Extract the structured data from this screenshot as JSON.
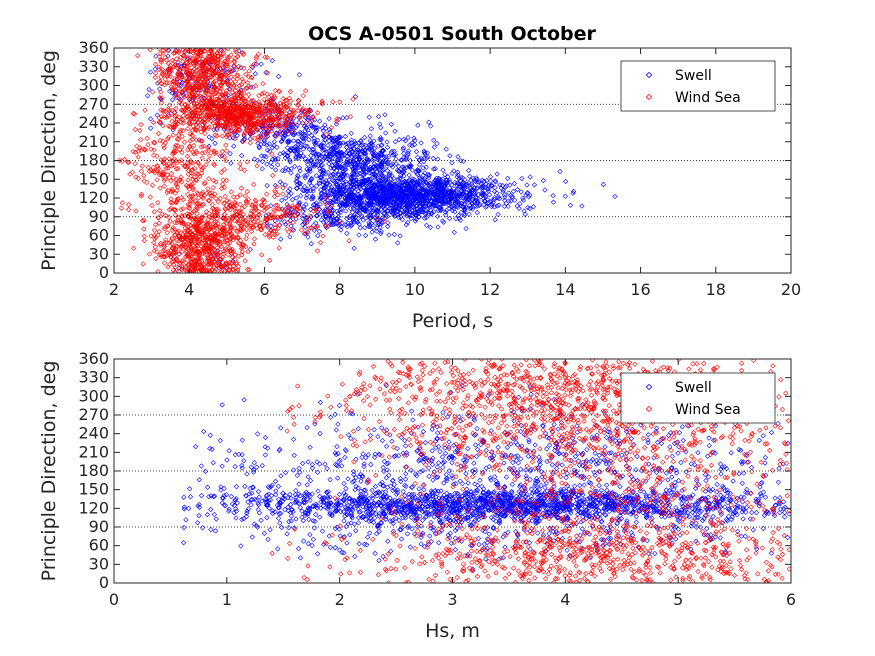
{
  "title": "OCS A-0501 South October",
  "colors": {
    "swell": "#0000ff",
    "wind_sea": "#ff0000",
    "axis": "#262626",
    "ref_lines": "#000000"
  },
  "chart_data": [
    {
      "type": "scatter",
      "xlabel": "Period, s",
      "ylabel": "Principle Direction, deg",
      "xlim": [
        2,
        20
      ],
      "ylim": [
        0,
        360
      ],
      "xticks": [
        2,
        4,
        6,
        8,
        10,
        12,
        14,
        16,
        18,
        20
      ],
      "yticks": [
        0,
        30,
        60,
        90,
        120,
        150,
        180,
        210,
        240,
        270,
        300,
        330,
        360
      ],
      "reference_lines_y": [
        90,
        180,
        270
      ],
      "grid": false,
      "legend": {
        "placement": "top-right",
        "entries": [
          "Swell",
          "Wind Sea"
        ]
      },
      "marker": "diamond",
      "series": [
        {
          "name": "Swell",
          "color": "#0000ff",
          "point_count": 2600,
          "clusters": [
            {
              "x_mean": 9.8,
              "x_sd": 1.4,
              "y_mean": 125,
              "y_sd": 16,
              "weight": 0.55,
              "x_range": [
                6.5,
                15.5
              ]
            },
            {
              "x_mean": 8.4,
              "x_sd": 1.1,
              "y_mean": 180,
              "y_sd": 22,
              "weight": 0.22,
              "x_range": [
                5.5,
                13
              ]
            },
            {
              "x_mean": 6.6,
              "x_sd": 1.0,
              "y_mean": 225,
              "y_sd": 22,
              "weight": 0.1,
              "x_range": [
                4.5,
                10
              ]
            },
            {
              "x_mean": 8.0,
              "x_sd": 1.2,
              "y_mean": 85,
              "y_sd": 15,
              "weight": 0.08,
              "x_range": [
                6,
                12
              ]
            },
            {
              "x_mean": 4.2,
              "x_sd": 0.9,
              "y_mean": 310,
              "y_sd": 40,
              "weight": 0.05,
              "x_range": [
                2.8,
                7
              ]
            }
          ],
          "x_peak": [
            9.6,
            125
          ]
        },
        {
          "name": "Wind Sea",
          "color": "#ff0000",
          "point_count": 2400,
          "clusters": [
            {
              "x_mean": 4.3,
              "x_sd": 0.6,
              "y_mean": 320,
              "y_sd": 28,
              "weight": 0.22,
              "x_range": [
                3,
                6.5
              ]
            },
            {
              "x_mean": 5.3,
              "x_sd": 0.9,
              "y_mean": 255,
              "y_sd": 16,
              "weight": 0.3,
              "x_range": [
                3.2,
                8.5
              ]
            },
            {
              "x_mean": 4.3,
              "x_sd": 0.6,
              "y_mean": 45,
              "y_sd": 28,
              "weight": 0.22,
              "x_range": [
                2.5,
                6.5
              ]
            },
            {
              "x_mean": 5.5,
              "x_sd": 1.0,
              "y_mean": 90,
              "y_sd": 20,
              "weight": 0.12,
              "x_range": [
                3.5,
                9.5
              ]
            },
            {
              "x_mean": 3.8,
              "x_sd": 0.8,
              "y_mean": 170,
              "y_sd": 45,
              "weight": 0.14,
              "x_range": [
                2.1,
                7
              ]
            }
          ]
        }
      ]
    },
    {
      "type": "scatter",
      "xlabel": "Hs, m",
      "ylabel": "Principle Direction, deg",
      "xlim": [
        0,
        6
      ],
      "ylim": [
        0,
        360
      ],
      "xticks": [
        0,
        1,
        2,
        3,
        4,
        5,
        6
      ],
      "yticks": [
        0,
        30,
        60,
        90,
        120,
        150,
        180,
        210,
        240,
        270,
        300,
        330,
        360
      ],
      "reference_lines_y": [
        90,
        180,
        270
      ],
      "grid": false,
      "legend": {
        "placement": "top-right",
        "entries": [
          "Swell",
          "Wind Sea"
        ]
      },
      "marker": "diamond",
      "series": [
        {
          "name": "Swell",
          "color": "#0000ff",
          "point_count": 2600,
          "clusters": [
            {
              "x_mean": 3.5,
              "x_sd": 1.3,
              "y_mean": 125,
              "y_sd": 13,
              "weight": 0.6,
              "x_range": [
                0.6,
                6
              ]
            },
            {
              "x_mean": 3.6,
              "x_sd": 1.3,
              "y_mean": 190,
              "y_sd": 45,
              "weight": 0.3,
              "x_range": [
                0.7,
                6
              ]
            },
            {
              "x_mean": 3.3,
              "x_sd": 1.4,
              "y_mean": 80,
              "y_sd": 20,
              "weight": 0.1,
              "x_range": [
                0.6,
                6
              ]
            }
          ]
        },
        {
          "name": "Wind Sea",
          "color": "#ff0000",
          "point_count": 2100,
          "clusters": [
            {
              "x_mean": 4.0,
              "x_sd": 1.0,
              "y_mean": 260,
              "y_sd": 45,
              "weight": 0.35,
              "x_range": [
                1.5,
                6
              ]
            },
            {
              "x_mean": 3.9,
              "x_sd": 1.0,
              "y_mean": 320,
              "y_sd": 25,
              "weight": 0.2,
              "x_range": [
                2.0,
                6
              ]
            },
            {
              "x_mean": 4.2,
              "x_sd": 1.0,
              "y_mean": 45,
              "y_sd": 30,
              "weight": 0.3,
              "x_range": [
                1.4,
                6
              ]
            },
            {
              "x_mean": 4.5,
              "x_sd": 0.9,
              "y_mean": 150,
              "y_sd": 50,
              "weight": 0.15,
              "x_range": [
                2.0,
                6
              ]
            }
          ]
        }
      ]
    }
  ]
}
